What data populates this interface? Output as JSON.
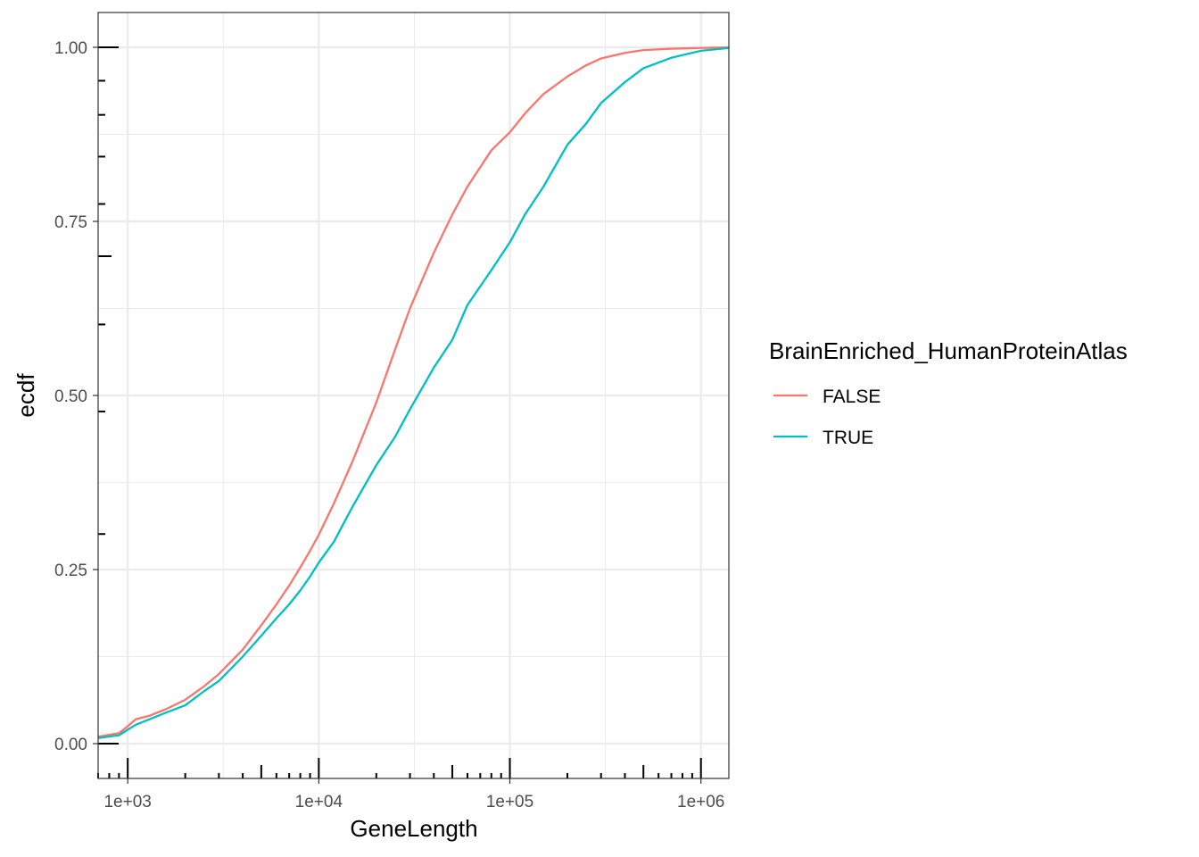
{
  "chart_data": {
    "type": "line",
    "xlabel": "GeneLength",
    "ylabel": "ecdf",
    "x_scale": "log10",
    "xlim": [
      700,
      1400000
    ],
    "ylim": [
      -0.05,
      1.05
    ],
    "x_ticks": [
      1000,
      10000,
      100000,
      1000000
    ],
    "x_tick_labels": [
      "1e+03",
      "1e+04",
      "1e+05",
      "1e+06"
    ],
    "y_ticks": [
      0,
      0.25,
      0.5,
      0.75,
      1
    ],
    "y_tick_labels": [
      "0.00",
      "0.25",
      "0.50",
      "0.75",
      "1.00"
    ],
    "grid": true,
    "rug": true,
    "legend": {
      "title": "BrainEnriched_HumanProteinAtlas",
      "position": "right"
    },
    "series": [
      {
        "name": "FALSE",
        "color": "#F8766D",
        "x": [
          700,
          900,
          1000,
          1100,
          1300,
          1600,
          2000,
          2500,
          3000,
          4000,
          5000,
          6000,
          7000,
          8000,
          9000,
          10000,
          12000,
          15000,
          20000,
          25000,
          30000,
          40000,
          50000,
          60000,
          80000,
          100000,
          120000,
          150000,
          200000,
          250000,
          300000,
          400000,
          500000,
          700000,
          1000000,
          1400000
        ],
        "y": [
          0.01,
          0.015,
          0.025,
          0.035,
          0.04,
          0.05,
          0.063,
          0.082,
          0.1,
          0.135,
          0.17,
          0.2,
          0.227,
          0.253,
          0.277,
          0.3,
          0.345,
          0.405,
          0.49,
          0.565,
          0.625,
          0.705,
          0.76,
          0.8,
          0.852,
          0.878,
          0.905,
          0.933,
          0.958,
          0.974,
          0.984,
          0.992,
          0.996,
          0.998,
          0.999,
          1.0
        ]
      },
      {
        "name": "TRUE",
        "color": "#00BFC4",
        "x": [
          700,
          900,
          1000,
          1100,
          1300,
          1600,
          2000,
          2500,
          3000,
          4000,
          5000,
          6000,
          7000,
          8000,
          9000,
          10000,
          12000,
          15000,
          20000,
          25000,
          30000,
          40000,
          50000,
          60000,
          80000,
          100000,
          120000,
          150000,
          200000,
          250000,
          300000,
          400000,
          500000,
          700000,
          1000000,
          1400000
        ],
        "y": [
          0.008,
          0.012,
          0.02,
          0.027,
          0.035,
          0.045,
          0.055,
          0.075,
          0.09,
          0.125,
          0.155,
          0.18,
          0.2,
          0.22,
          0.24,
          0.26,
          0.29,
          0.34,
          0.4,
          0.44,
          0.48,
          0.54,
          0.58,
          0.63,
          0.68,
          0.72,
          0.76,
          0.8,
          0.86,
          0.89,
          0.92,
          0.95,
          0.97,
          0.985,
          0.995,
          0.999
        ]
      }
    ]
  }
}
